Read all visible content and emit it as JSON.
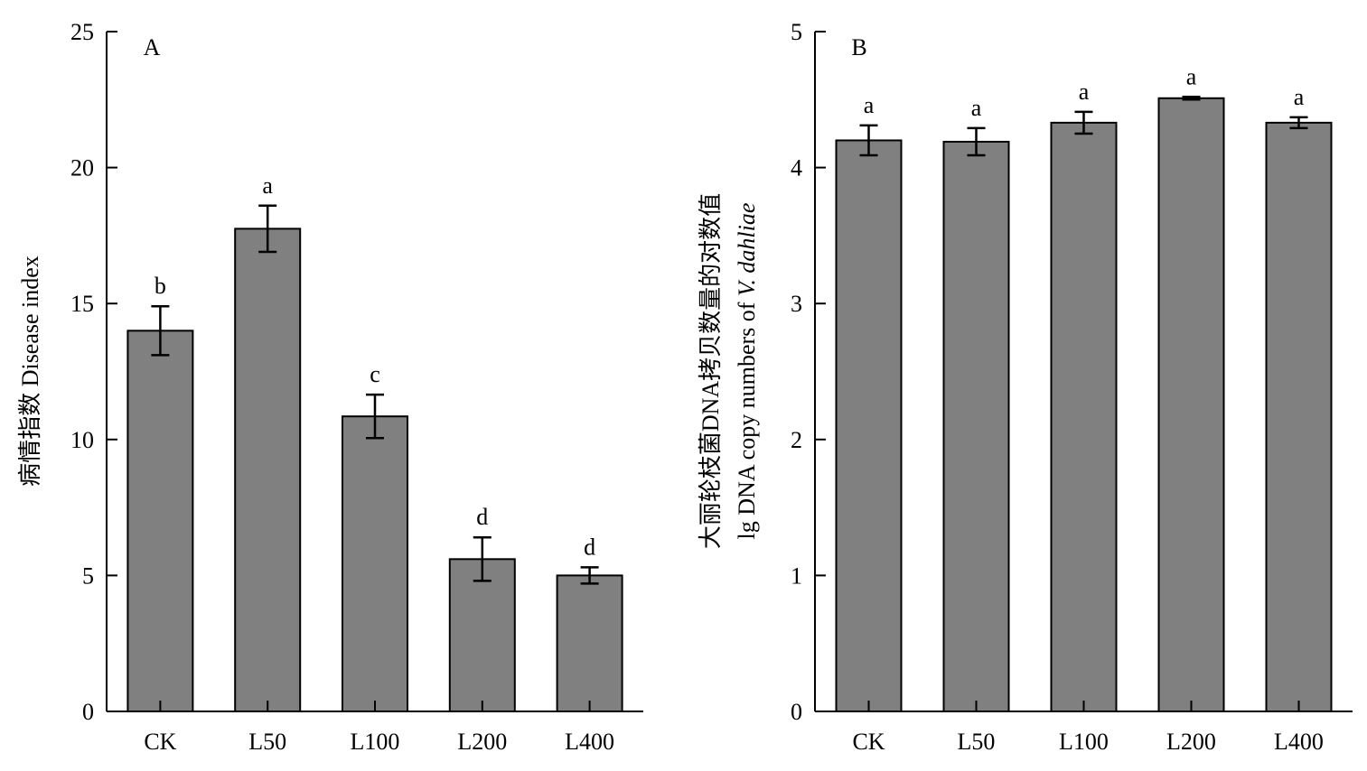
{
  "colors": {
    "bar_fill": "#808080",
    "bar_stroke": "#000000",
    "background": "#ffffff"
  },
  "chart_data": [
    {
      "type": "bar",
      "panel_label": "A",
      "title": "",
      "xlabel": "",
      "ylabel": "病情指数 Disease index",
      "categories": [
        "CK",
        "L50",
        "L100",
        "L200",
        "L400"
      ],
      "values": [
        14.0,
        17.75,
        10.85,
        5.6,
        5.0
      ],
      "errors": [
        0.9,
        0.85,
        0.8,
        0.8,
        0.3
      ],
      "significance": [
        "b",
        "a",
        "c",
        "d",
        "d"
      ],
      "ylim": [
        0,
        25
      ],
      "yticks": [
        "0",
        "5",
        "10",
        "15",
        "20",
        "25"
      ],
      "ytick_values": [
        0,
        5,
        10,
        15,
        20,
        25
      ],
      "grid": false,
      "legend": "none"
    },
    {
      "type": "bar",
      "panel_label": "B",
      "title": "",
      "xlabel": "",
      "ylabel_line1": "大丽轮枝菌DNA拷贝数量的对数值",
      "ylabel_line2_prefix": "lg DNA copy numbers of ",
      "ylabel_line2_species": "V. dahliae",
      "categories": [
        "CK",
        "L50",
        "L100",
        "L200",
        "L400"
      ],
      "values": [
        4.2,
        4.19,
        4.33,
        4.51,
        4.33
      ],
      "errors": [
        0.11,
        0.1,
        0.08,
        0.01,
        0.04
      ],
      "significance": [
        "a",
        "a",
        "a",
        "a",
        "a"
      ],
      "ylim": [
        0,
        5
      ],
      "yticks": [
        "0",
        "1",
        "2",
        "3",
        "4",
        "5"
      ],
      "ytick_values": [
        0,
        1,
        2,
        3,
        4,
        5
      ],
      "grid": false,
      "legend": "none"
    }
  ]
}
